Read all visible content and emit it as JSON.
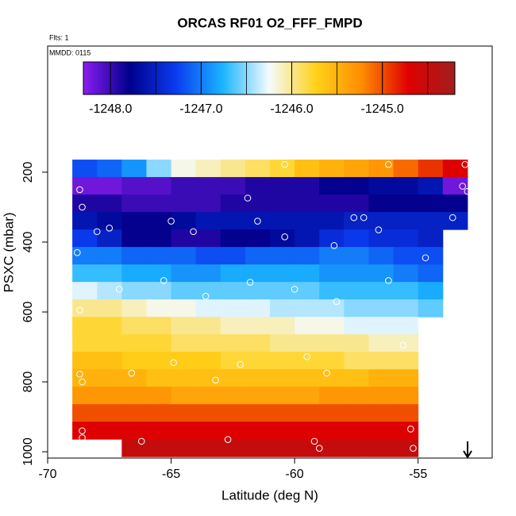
{
  "chart_data": {
    "type": "heatmap",
    "title": "ORCAS RF01 O2_FFF_FMPD",
    "subtitle": "Flts: 1",
    "annotation": "MMDD: 0115",
    "x_label": "Latitude (deg N)",
    "y_label": "PSXC (mbar)",
    "xlim": [
      -70,
      -52
    ],
    "ylim": [
      1018,
      -161
    ],
    "xticks": [
      -70,
      -65,
      -60,
      -55
    ],
    "yticks": [
      200,
      400,
      600,
      800,
      1000
    ],
    "x_bins": [
      -69,
      -68,
      -67,
      -66,
      -65,
      -64,
      -63,
      -62,
      -61,
      -60,
      -59,
      -58,
      -57,
      -56,
      -55,
      -54,
      -53
    ],
    "y_bins": [
      164,
      214,
      264,
      314,
      364,
      414,
      464,
      514,
      564,
      614,
      664,
      714,
      764,
      814,
      864,
      914,
      964,
      1014
    ],
    "z": [
      [
        -1247.2,
        -1247.1,
        -1246.9,
        -1246.5,
        -1246.2,
        -1246.1,
        -1246.0,
        -1245.9,
        -1245.8,
        -1245.6,
        -1245.5,
        -1245.4,
        -1245.3,
        -1245.1,
        -1244.9,
        -1244.7
      ],
      [
        -1248.2,
        -1248.2,
        -1248.1,
        -1248.1,
        -1248.0,
        -1248.0,
        -1248.0,
        -1247.9,
        -1247.9,
        -1247.9,
        -1247.8,
        -1247.8,
        -1247.7,
        -1247.7,
        -1247.6,
        -1248.2
      ],
      [
        -1247.9,
        -1247.9,
        -1248.0,
        -1248.0,
        -1248.0,
        -1248.0,
        -1247.9,
        -1247.9,
        -1247.9,
        -1247.9,
        -1247.9,
        -1247.9,
        -1247.8,
        -1247.8,
        -1247.8,
        -1247.8
      ],
      [
        -1247.6,
        -1247.7,
        -1247.8,
        -1247.8,
        -1247.7,
        -1247.6,
        -1247.6,
        -1247.6,
        -1247.6,
        -1247.6,
        -1247.6,
        -1247.5,
        -1247.5,
        -1247.5,
        -1247.5,
        -1247.5
      ],
      [
        -1247.3,
        -1247.5,
        -1247.8,
        -1247.8,
        -1247.9,
        -1247.9,
        -1247.8,
        -1247.8,
        -1247.7,
        -1247.6,
        -1247.4,
        -1247.3,
        -1247.4,
        -1247.4,
        -1247.5,
        null
      ],
      [
        -1247.0,
        -1247.0,
        -1247.1,
        -1247.1,
        -1247.1,
        -1247.2,
        -1247.2,
        -1247.1,
        -1247.1,
        -1247.1,
        -1247.0,
        -1247.0,
        -1247.1,
        -1247.2,
        -1247.2,
        null
      ],
      [
        -1246.7,
        -1246.7,
        -1246.8,
        -1246.8,
        -1246.9,
        -1246.9,
        -1246.8,
        -1246.8,
        -1246.8,
        -1246.8,
        -1246.9,
        -1246.9,
        -1246.9,
        -1247.0,
        -1247.1,
        null
      ],
      [
        -1246.3,
        -1246.4,
        -1246.5,
        -1246.5,
        -1246.6,
        -1246.6,
        -1246.6,
        -1246.6,
        -1246.6,
        -1246.6,
        -1246.7,
        -1246.7,
        -1246.7,
        -1246.7,
        -1246.8,
        null
      ],
      [
        -1246.0,
        -1246.0,
        -1246.1,
        -1246.2,
        -1246.2,
        -1246.3,
        -1246.3,
        -1246.3,
        -1246.4,
        -1246.4,
        -1246.4,
        -1246.5,
        -1246.5,
        -1246.5,
        -1246.6,
        null
      ],
      [
        -1245.8,
        -1245.8,
        -1245.9,
        -1245.9,
        -1246.0,
        -1246.0,
        -1246.1,
        -1246.1,
        -1246.1,
        -1246.2,
        -1246.2,
        -1246.3,
        -1246.3,
        -1246.3,
        null,
        null
      ],
      [
        -1245.8,
        -1245.8,
        -1245.8,
        -1245.8,
        -1245.9,
        -1245.9,
        -1245.9,
        -1245.9,
        -1246.0,
        -1246.0,
        -1246.0,
        -1246.0,
        -1246.1,
        -1246.1,
        null,
        null
      ],
      [
        -1245.6,
        -1245.6,
        -1245.7,
        -1245.7,
        -1245.7,
        -1245.7,
        -1245.8,
        -1245.8,
        -1245.8,
        -1245.8,
        -1245.8,
        -1245.9,
        -1245.9,
        -1245.9,
        null,
        null
      ],
      [
        -1245.5,
        -1245.5,
        -1245.5,
        -1245.6,
        -1245.6,
        -1245.6,
        -1245.6,
        -1245.6,
        -1245.6,
        -1245.6,
        -1245.6,
        -1245.6,
        -1245.5,
        -1245.5,
        null,
        null
      ],
      [
        -1245.3,
        -1245.3,
        -1245.3,
        -1245.3,
        -1245.4,
        -1245.4,
        -1245.4,
        -1245.4,
        -1245.4,
        -1245.4,
        -1245.3,
        -1245.3,
        -1245.3,
        -1245.3,
        null,
        null
      ],
      [
        -1245.0,
        -1245.0,
        -1245.0,
        -1245.0,
        -1245.0,
        -1245.0,
        -1245.0,
        -1245.0,
        -1245.0,
        -1245.0,
        -1245.0,
        -1245.0,
        -1245.0,
        -1245.0,
        null,
        null
      ],
      [
        -1244.7,
        -1244.7,
        -1244.7,
        -1244.7,
        -1244.7,
        -1244.7,
        -1244.7,
        -1244.7,
        -1244.7,
        -1244.7,
        -1244.7,
        -1244.7,
        -1244.7,
        -1244.7,
        null,
        null
      ],
      [
        null,
        null,
        -1244.5,
        -1244.5,
        -1244.5,
        -1244.5,
        -1244.5,
        -1244.5,
        -1244.5,
        -1244.5,
        -1244.5,
        -1244.5,
        -1244.5,
        -1244.5,
        null,
        null
      ]
    ],
    "clim": [
      -1248.3,
      -1244.2
    ],
    "cticks": [
      {
        "value": -1248,
        "label": "-1248.0"
      },
      {
        "value": -1247,
        "label": "-1247.0"
      },
      {
        "value": -1246,
        "label": "-1246.0"
      },
      {
        "value": -1245,
        "label": "-1245.0"
      }
    ],
    "colorscale": [
      "#8b1cf0",
      "#00008c",
      "#0a3cf0",
      "#1ab4ff",
      "#f4fbff",
      "#ffd21a",
      "#ff8c00",
      "#e00000",
      "#a01e1e"
    ],
    "points": {
      "x": [
        -53.1,
        -56.2,
        -60.4,
        -68.7,
        -68.6,
        -61.9,
        -53.2,
        -53.0,
        -53.6,
        -57.2,
        -57.6,
        -56.6,
        -58.4,
        -61.5,
        -60.4,
        -64.1,
        -65.0,
        -67.5,
        -68.0,
        -68.8,
        -54.7,
        -65.3,
        -61.8,
        -56.2,
        -67.1,
        -60.0,
        -63.6,
        -58.3,
        -54.5,
        -68.7,
        -55.6,
        -59.5,
        -62.2,
        -64.9,
        -66.6,
        -68.7,
        -68.6,
        -63.2,
        -58.7,
        -54.6,
        -68.6,
        -68.6,
        -66.2,
        -62.7,
        -59.2,
        -59.0,
        -55.3,
        -55.2
      ],
      "y": [
        178,
        178,
        178,
        250,
        300,
        274,
        240,
        255,
        330,
        330,
        330,
        365,
        410,
        340,
        385,
        370,
        340,
        360,
        370,
        430,
        445,
        510,
        515,
        510,
        535,
        535,
        555,
        570,
        625,
        595,
        695,
        728,
        750,
        745,
        775,
        778,
        800,
        795,
        775,
        835,
        940,
        960,
        970,
        965,
        970,
        990,
        935,
        990
      ]
    }
  }
}
